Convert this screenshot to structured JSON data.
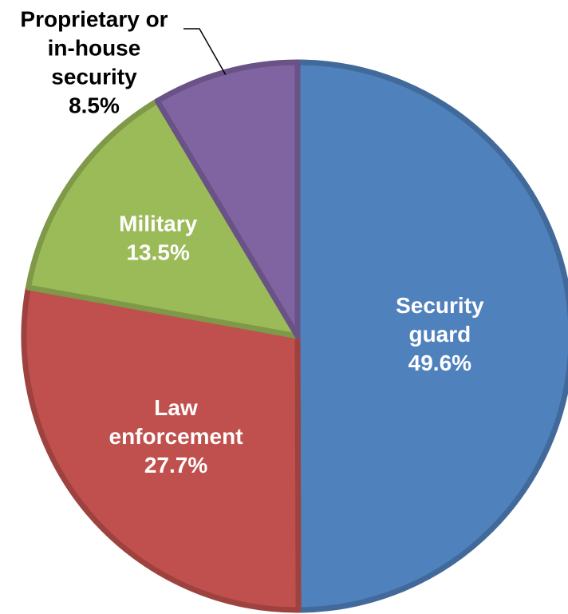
{
  "chart_data": {
    "type": "pie",
    "start_angle_deg": 0,
    "direction": "clockwise",
    "slices": [
      {
        "name": "Security guard",
        "label_lines": [
          "Security",
          "guard"
        ],
        "value": 49.6,
        "value_label": "49.6%",
        "color": "#4F81BD",
        "label_position": "inside"
      },
      {
        "name": "Law enforcement",
        "label_lines": [
          "Law",
          "enforcement"
        ],
        "value": 27.7,
        "value_label": "27.7%",
        "color": "#C0504D",
        "label_position": "inside"
      },
      {
        "name": "Military",
        "label_lines": [
          "Military"
        ],
        "value": 13.5,
        "value_label": "13.5%",
        "color": "#9BBB59",
        "label_position": "inside"
      },
      {
        "name": "Proprietary or in-house security",
        "label_lines": [
          "Proprietary or",
          "in-house",
          "security"
        ],
        "value": 8.5,
        "value_label": "8.5%",
        "color": "#8064A2",
        "label_position": "outside-top-left"
      }
    ],
    "label_text_color_inside": "#FFFFFF",
    "label_text_color_outside": "#000000",
    "leader_line_color": "#000000"
  }
}
